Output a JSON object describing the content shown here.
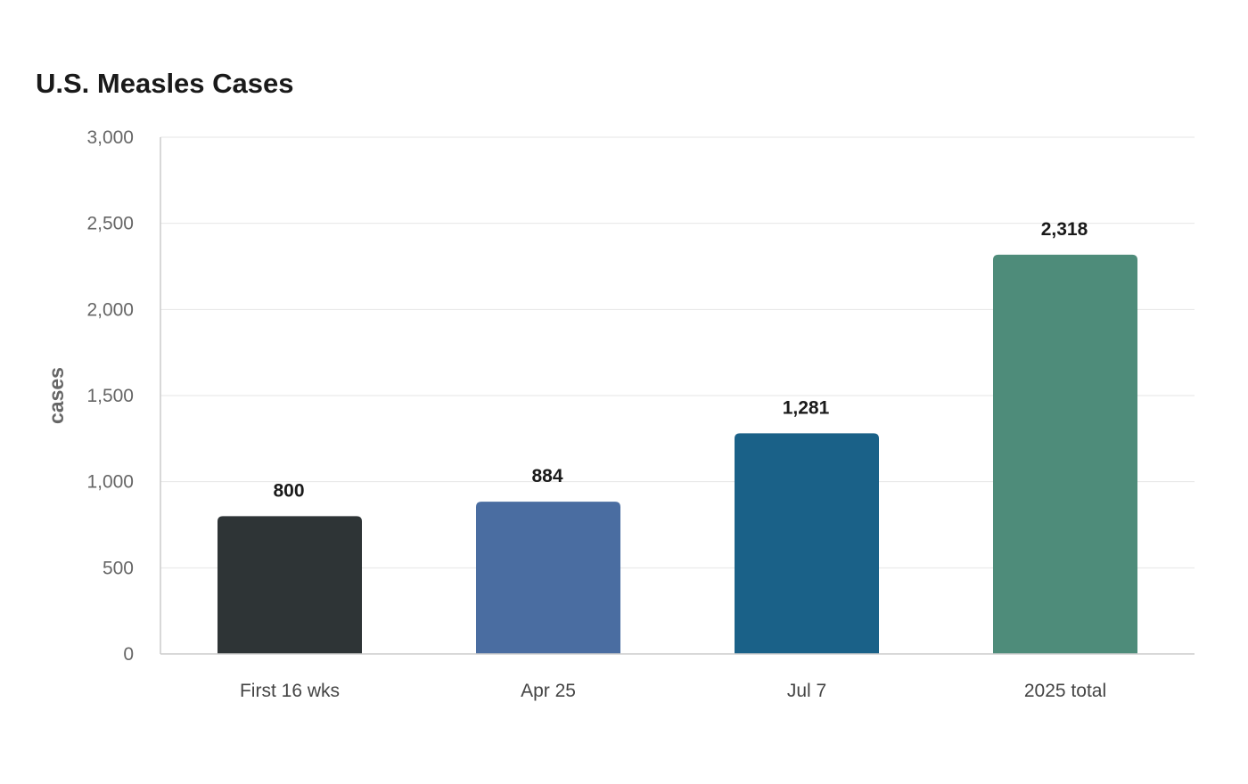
{
  "chart_data": {
    "type": "bar",
    "title": "U.S. Measles Cases",
    "xlabel": "",
    "ylabel": "cases",
    "categories": [
      "First 16 wks",
      "Apr 25",
      "Jul 7",
      "2025 total"
    ],
    "values": [
      800,
      884,
      1281,
      2318
    ],
    "data_labels": [
      "800",
      "884",
      "1,281",
      "2,318"
    ],
    "colors": [
      "#2e3436",
      "#4a6da1",
      "#1a6188",
      "#4e8c7a"
    ],
    "ylim": [
      0,
      3000
    ],
    "yticks": [
      0,
      500,
      1000,
      1500,
      2000,
      2500,
      3000
    ],
    "ytick_labels": [
      "0",
      "500",
      "1,000",
      "1,500",
      "2,000",
      "2,500",
      "3,000"
    ],
    "grid": true,
    "legend": "none"
  }
}
